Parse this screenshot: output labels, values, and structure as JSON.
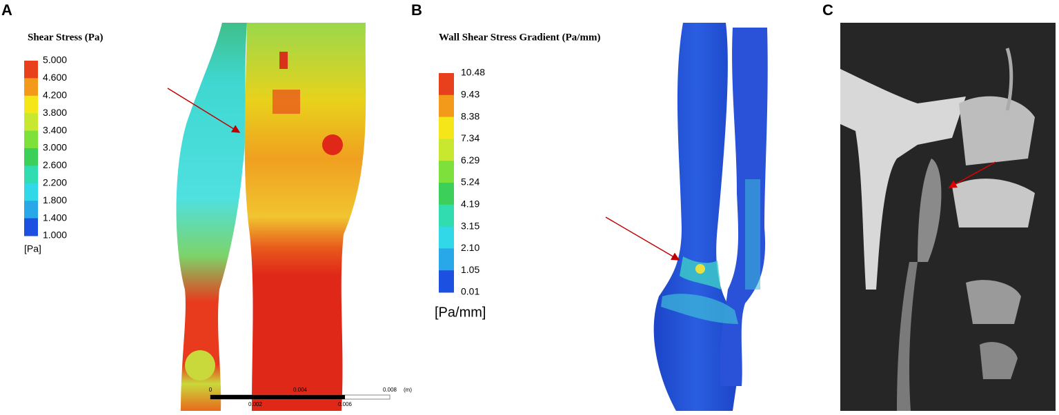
{
  "panels": [
    {
      "label": "A",
      "legend": {
        "title": "Shear Stress (Pa)",
        "ticks": [
          "5.000",
          "4.600",
          "4.200",
          "3.800",
          "3.400",
          "3.000",
          "2.600",
          "2.200",
          "1.800",
          "1.400",
          "1.000"
        ],
        "unit": "[Pa]"
      },
      "scale_bar": {
        "top": [
          "0",
          "0.004",
          "0.008",
          "(m)"
        ],
        "bottom": [
          "0.002",
          "0.006"
        ]
      }
    },
    {
      "label": "B",
      "legend": {
        "title": "Wall Shear Stress Gradient (Pa/mm)",
        "ticks": [
          "10.48",
          "9.43",
          "8.38",
          "7.34",
          "6.29",
          "5.24",
          "4.19",
          "3.15",
          "2.10",
          "1.05",
          "0.01"
        ],
        "unit": "[Pa/mm]"
      }
    },
    {
      "label": "C"
    }
  ]
}
